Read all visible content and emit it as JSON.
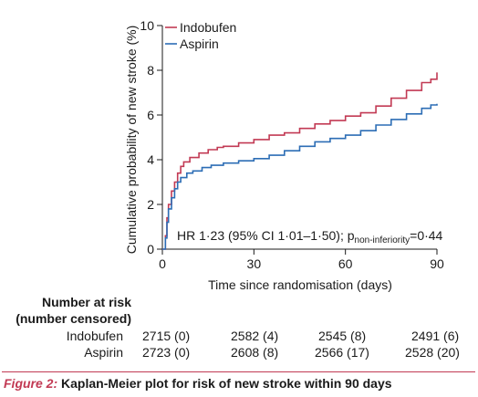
{
  "chart_data": {
    "type": "line",
    "ylabel": "Cumulative probability of new stroke (%)",
    "xlabel": "Time since randomisation (days)",
    "xlim": [
      0,
      90
    ],
    "ylim": [
      0,
      10
    ],
    "x_ticks": [
      "0",
      "30",
      "60",
      "90"
    ],
    "y_ticks": [
      "0",
      "2",
      "4",
      "6",
      "8",
      "10"
    ],
    "legend_position": "top-left",
    "grid": false,
    "annotation": {
      "main": "HR 1·23 (95% CI 1·01–1·50); p",
      "subscript": "non-inferiority",
      "tail": "=0·44"
    },
    "series": [
      {
        "name": "Indobufen",
        "color": "#c23a54",
        "points": [
          [
            0,
            0
          ],
          [
            1,
            0.6
          ],
          [
            1.5,
            1.4
          ],
          [
            2,
            2.0
          ],
          [
            3,
            2.6
          ],
          [
            4,
            3.0
          ],
          [
            5,
            3.4
          ],
          [
            6,
            3.7
          ],
          [
            7,
            3.9
          ],
          [
            9,
            4.1
          ],
          [
            12,
            4.3
          ],
          [
            15,
            4.45
          ],
          [
            18,
            4.55
          ],
          [
            20,
            4.6
          ],
          [
            25,
            4.75
          ],
          [
            30,
            4.9
          ],
          [
            35,
            5.1
          ],
          [
            40,
            5.2
          ],
          [
            45,
            5.4
          ],
          [
            50,
            5.6
          ],
          [
            55,
            5.75
          ],
          [
            60,
            5.95
          ],
          [
            65,
            6.1
          ],
          [
            70,
            6.4
          ],
          [
            75,
            6.75
          ],
          [
            80,
            7.1
          ],
          [
            85,
            7.45
          ],
          [
            88,
            7.6
          ],
          [
            90,
            7.9
          ]
        ]
      },
      {
        "name": "Aspirin",
        "color": "#2c6db5",
        "points": [
          [
            0,
            0
          ],
          [
            1,
            0.5
          ],
          [
            1.5,
            1.2
          ],
          [
            2,
            1.8
          ],
          [
            3,
            2.3
          ],
          [
            4,
            2.7
          ],
          [
            5,
            3.0
          ],
          [
            6,
            3.2
          ],
          [
            8,
            3.4
          ],
          [
            10,
            3.5
          ],
          [
            13,
            3.65
          ],
          [
            16,
            3.75
          ],
          [
            20,
            3.85
          ],
          [
            25,
            3.95
          ],
          [
            30,
            4.05
          ],
          [
            35,
            4.2
          ],
          [
            40,
            4.4
          ],
          [
            45,
            4.6
          ],
          [
            50,
            4.8
          ],
          [
            55,
            4.95
          ],
          [
            60,
            5.1
          ],
          [
            65,
            5.3
          ],
          [
            70,
            5.55
          ],
          [
            75,
            5.8
          ],
          [
            80,
            6.05
          ],
          [
            85,
            6.3
          ],
          [
            88,
            6.45
          ],
          [
            90,
            6.5
          ]
        ]
      }
    ]
  },
  "risk_table": {
    "title_line1": "Number at risk",
    "title_line2": "(number censored)",
    "rows": [
      {
        "label": "Indobufen",
        "cells": [
          "2715 (0)",
          "2582 (4)",
          "2545 (8)",
          "2491 (6)"
        ]
      },
      {
        "label": "Aspirin",
        "cells": [
          "2723 (0)",
          "2608 (8)",
          "2566 (17)",
          "2528 (20)"
        ]
      }
    ]
  },
  "caption": {
    "figure_label": "Figure 2:",
    "text": " Kaplan-Meier plot for risk of new stroke within 90 days"
  }
}
